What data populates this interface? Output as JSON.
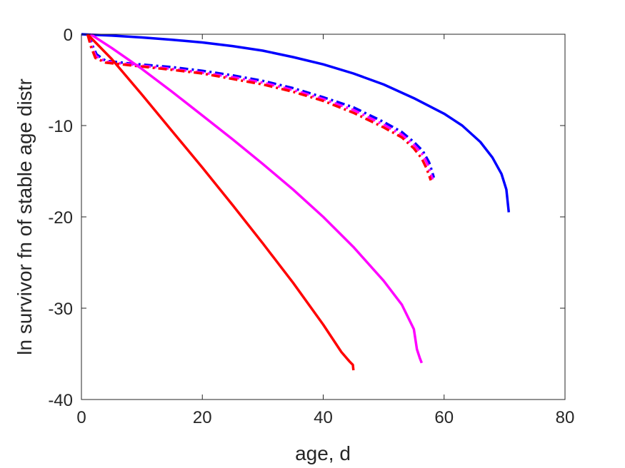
{
  "chart_data": {
    "type": "line",
    "title": "",
    "xlabel": "age, d",
    "ylabel": "ln survivor fn of stable age distr",
    "xlim": [
      0,
      80
    ],
    "ylim": [
      -40,
      0
    ],
    "xticks": [
      0,
      20,
      40,
      60,
      80
    ],
    "yticks": [
      0,
      -10,
      -20,
      -30,
      -40
    ],
    "xtick_labels": [
      "0",
      "20",
      "40",
      "60",
      "80"
    ],
    "ytick_labels": [
      "0",
      "-10",
      "-20",
      "-30",
      "-40"
    ],
    "grid": false,
    "legend": "none",
    "series": [
      {
        "color": "#0000ff",
        "style": "solid",
        "points": [
          [
            0,
            0
          ],
          [
            5,
            -0.15
          ],
          [
            10,
            -0.35
          ],
          [
            15,
            -0.6
          ],
          [
            20,
            -0.9
          ],
          [
            25,
            -1.3
          ],
          [
            30,
            -1.8
          ],
          [
            35,
            -2.5
          ],
          [
            40,
            -3.3
          ],
          [
            45,
            -4.3
          ],
          [
            50,
            -5.5
          ],
          [
            55,
            -7.0
          ],
          [
            60,
            -8.7
          ],
          [
            63,
            -10.0
          ],
          [
            66,
            -11.8
          ],
          [
            68,
            -13.5
          ],
          [
            69.5,
            -15.3
          ],
          [
            70.3,
            -17.0
          ],
          [
            70.7,
            -19.5
          ]
        ]
      },
      {
        "color": "#0000ff",
        "style": "dashdot",
        "points": [
          [
            1.2,
            0
          ],
          [
            1.8,
            -1.2
          ],
          [
            2.5,
            -2.2
          ],
          [
            4,
            -2.9
          ],
          [
            8,
            -3.2
          ],
          [
            15,
            -3.6
          ],
          [
            20,
            -4.0
          ],
          [
            25,
            -4.5
          ],
          [
            30,
            -5.1
          ],
          [
            35,
            -5.9
          ],
          [
            40,
            -6.9
          ],
          [
            45,
            -8.0
          ],
          [
            50,
            -9.6
          ],
          [
            53,
            -10.7
          ],
          [
            55,
            -11.8
          ],
          [
            56.5,
            -12.8
          ],
          [
            57.5,
            -14.0
          ],
          [
            58,
            -15.0
          ],
          [
            58.3,
            -15.7
          ]
        ]
      },
      {
        "color": "#ff00ff",
        "style": "dashdot",
        "points": [
          [
            1.1,
            0
          ],
          [
            1.7,
            -1.3
          ],
          [
            2.4,
            -2.4
          ],
          [
            4,
            -3.0
          ],
          [
            8,
            -3.3
          ],
          [
            15,
            -3.8
          ],
          [
            20,
            -4.2
          ],
          [
            25,
            -4.7
          ],
          [
            30,
            -5.3
          ],
          [
            35,
            -6.1
          ],
          [
            40,
            -7.1
          ],
          [
            45,
            -8.3
          ],
          [
            50,
            -9.9
          ],
          [
            53,
            -11.0
          ],
          [
            55,
            -12.1
          ],
          [
            56.5,
            -13.2
          ],
          [
            57.3,
            -14.3
          ],
          [
            57.8,
            -15.3
          ],
          [
            58.1,
            -15.9
          ]
        ]
      },
      {
        "color": "#ff0000",
        "style": "dashdot",
        "points": [
          [
            1,
            0
          ],
          [
            1.6,
            -1.4
          ],
          [
            2.3,
            -2.6
          ],
          [
            4,
            -3.1
          ],
          [
            8,
            -3.4
          ],
          [
            15,
            -3.9
          ],
          [
            20,
            -4.3
          ],
          [
            25,
            -4.9
          ],
          [
            30,
            -5.5
          ],
          [
            35,
            -6.3
          ],
          [
            40,
            -7.3
          ],
          [
            45,
            -8.6
          ],
          [
            50,
            -10.2
          ],
          [
            53,
            -11.3
          ],
          [
            55,
            -12.5
          ],
          [
            56.3,
            -13.6
          ],
          [
            57.1,
            -14.7
          ],
          [
            57.6,
            -15.6
          ],
          [
            57.8,
            -16.0
          ]
        ]
      },
      {
        "color": "#ff00ff",
        "style": "solid",
        "points": [
          [
            1.5,
            0
          ],
          [
            5,
            -1.5
          ],
          [
            10,
            -3.8
          ],
          [
            15,
            -6.3
          ],
          [
            20,
            -8.9
          ],
          [
            25,
            -11.5
          ],
          [
            30,
            -14.2
          ],
          [
            35,
            -17.0
          ],
          [
            40,
            -20.0
          ],
          [
            45,
            -23.3
          ],
          [
            50,
            -27.0
          ],
          [
            53,
            -29.6
          ],
          [
            55,
            -32.3
          ],
          [
            55.5,
            -34.5
          ],
          [
            56,
            -35.5
          ],
          [
            56.3,
            -36.0
          ]
        ]
      },
      {
        "color": "#ff0000",
        "style": "solid",
        "points": [
          [
            1,
            0
          ],
          [
            5,
            -2.7
          ],
          [
            10,
            -6.6
          ],
          [
            15,
            -10.6
          ],
          [
            20,
            -14.6
          ],
          [
            25,
            -18.7
          ],
          [
            30,
            -22.9
          ],
          [
            35,
            -27.2
          ],
          [
            40,
            -31.8
          ],
          [
            43,
            -34.8
          ],
          [
            44.3,
            -35.8
          ],
          [
            44.6,
            -36.0
          ],
          [
            44.9,
            -36.2
          ],
          [
            45,
            -36.8
          ]
        ]
      }
    ]
  }
}
